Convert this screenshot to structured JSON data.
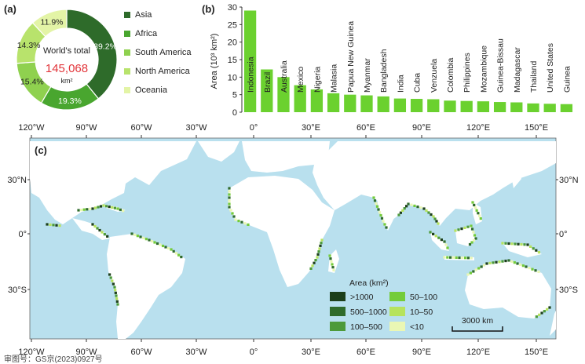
{
  "panels": {
    "a": "(a)",
    "b": "(b)",
    "c": "(c)"
  },
  "donut": {
    "center_line1": "World's total",
    "center_value": "145,068",
    "center_unit": "km²",
    "center_value_color": "#e2363b"
  },
  "chart_data": [
    {
      "type": "pie",
      "title": "",
      "slices": [
        {
          "name": "Asia",
          "percent": 39.2,
          "label": "39.2%",
          "color": "#2e6b2a"
        },
        {
          "name": "Africa",
          "percent": 19.3,
          "label": "19.3%",
          "color": "#49a62f"
        },
        {
          "name": "South America",
          "percent": 15.4,
          "label": "15.4%",
          "color": "#8fd14f"
        },
        {
          "name": "North America",
          "percent": 14.3,
          "label": "14.3%",
          "color": "#b8e36c"
        },
        {
          "name": "Oceania",
          "percent": 11.9,
          "label": "11.9%",
          "color": "#e3f4a6"
        }
      ],
      "legend_placement": "right"
    },
    {
      "type": "bar",
      "ylabel": "Area (10³ km²)",
      "ylim": [
        0,
        30
      ],
      "yticks": [
        "0",
        "5",
        "10",
        "15",
        "20",
        "25",
        "30"
      ],
      "bar_color": "#6bd12f",
      "categories": [
        "Indonesia",
        "Brazil",
        "Australia",
        "Mexico",
        "Nigeria",
        "Malasia",
        "Papua New Guinea",
        "Myanmar",
        "Bangladesh",
        "India",
        "Cuba",
        "Venzuela",
        "Colombia",
        "Philippines",
        "Mozambique",
        "Guinea-Bissau",
        "Madagascar",
        "Thailand",
        "United States",
        "Guinea"
      ],
      "values": [
        29,
        12.2,
        10,
        7.7,
        6.5,
        5.4,
        5,
        4.8,
        4.5,
        3.9,
        3.8,
        3.7,
        3.3,
        3.2,
        3.1,
        2.9,
        2.8,
        2.5,
        2.4,
        2.3
      ],
      "grid": false
    },
    {
      "type": "map",
      "legend_title": "Area (km²)",
      "legend_items": [
        {
          "label": ">1000",
          "color": "#1d3f1a"
        },
        {
          "label": "500–1000",
          "color": "#2f6b2b"
        },
        {
          "label": "100–500",
          "color": "#4d9a3a"
        },
        {
          "label": "50–100",
          "color": "#74cc3a"
        },
        {
          "label": "10–50",
          "color": "#b6e35d"
        },
        {
          "label": "<10",
          "color": "#eaf7b4"
        }
      ],
      "ocean_color": "#b9e0ee",
      "land_color": "#ffffff",
      "lon_ticks": [
        "120°W",
        "90°W",
        "60°W",
        "30°W",
        "0°",
        "30°E",
        "60°E",
        "90°E",
        "120°E",
        "150°E"
      ],
      "lat_ticks": [
        "30°N",
        "0°",
        "30°S"
      ],
      "scale_bar": "3000 km"
    }
  ],
  "footer": "审图号：GS京(2023)0927号"
}
